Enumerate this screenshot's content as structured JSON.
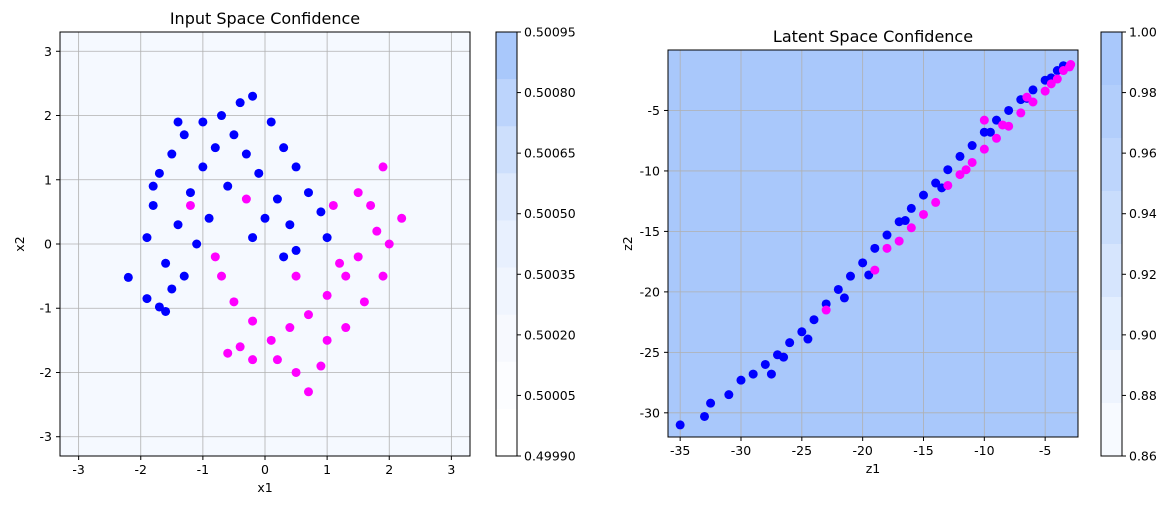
{
  "chart_data": [
    {
      "type": "scatter",
      "title": "Input Space Confidence",
      "xlabel": "x1",
      "ylabel": "x2",
      "xlim": [
        -3.3,
        3.3
      ],
      "ylim": [
        -3.3,
        3.3
      ],
      "xticks": [
        -3,
        -2,
        -1,
        0,
        1,
        2,
        3
      ],
      "yticks": [
        -3,
        -2,
        -1,
        0,
        1,
        2,
        3
      ],
      "grid": true,
      "background": "#f5f9ff",
      "colorbar": {
        "ticks": [
          "0.50095",
          "0.50080",
          "0.50065",
          "0.50050",
          "0.50035",
          "0.50020",
          "0.50005",
          "0.49990"
        ],
        "colors": [
          "#a9c8fb",
          "#bcd4fc",
          "#cddffc",
          "#dde9fd",
          "#e8f0fe",
          "#f0f5fe",
          "#f7f9fe",
          "#fcfdff",
          "#ffffff"
        ]
      },
      "series": [
        {
          "color": "#0000ff",
          "points": [
            [
              -2.2,
              -0.52
            ],
            [
              -1.9,
              -0.85
            ],
            [
              -1.7,
              -0.98
            ],
            [
              -1.6,
              -1.05
            ],
            [
              -1.9,
              0.1
            ],
            [
              -1.8,
              0.6
            ],
            [
              -1.7,
              1.1
            ],
            [
              -1.5,
              1.4
            ],
            [
              -1.3,
              1.7
            ],
            [
              -1.0,
              1.9
            ],
            [
              -0.7,
              2.0
            ],
            [
              -0.4,
              2.2
            ],
            [
              -0.2,
              2.3
            ],
            [
              0.1,
              1.9
            ],
            [
              0.3,
              1.5
            ],
            [
              0.5,
              1.2
            ],
            [
              0.7,
              0.8
            ],
            [
              0.9,
              0.5
            ],
            [
              1.0,
              0.1
            ],
            [
              -1.4,
              0.3
            ],
            [
              -1.2,
              0.8
            ],
            [
              -1.0,
              1.2
            ],
            [
              -0.8,
              1.5
            ],
            [
              -0.5,
              1.7
            ],
            [
              -0.3,
              1.4
            ],
            [
              -0.1,
              1.1
            ],
            [
              0.2,
              0.7
            ],
            [
              0.4,
              0.3
            ],
            [
              0.5,
              -0.1
            ],
            [
              -1.6,
              -0.3
            ],
            [
              -1.3,
              -0.5
            ],
            [
              -1.5,
              -0.7
            ],
            [
              -1.1,
              0.0
            ],
            [
              -0.9,
              0.4
            ],
            [
              -0.6,
              0.9
            ],
            [
              0.0,
              0.4
            ],
            [
              0.3,
              -0.2
            ],
            [
              -0.2,
              0.1
            ],
            [
              -1.8,
              0.9
            ],
            [
              -1.4,
              1.9
            ]
          ]
        },
        {
          "color": "#ff00ff",
          "points": [
            [
              1.9,
              1.2
            ],
            [
              1.7,
              0.6
            ],
            [
              1.8,
              0.2
            ],
            [
              1.5,
              -0.2
            ],
            [
              1.3,
              -0.5
            ],
            [
              1.0,
              -0.8
            ],
            [
              0.7,
              -1.1
            ],
            [
              0.4,
              -1.3
            ],
            [
              0.1,
              -1.5
            ],
            [
              -0.2,
              -1.2
            ],
            [
              -0.5,
              -0.9
            ],
            [
              -0.7,
              -0.5
            ],
            [
              -0.8,
              -0.2
            ],
            [
              0.2,
              -1.8
            ],
            [
              0.5,
              -2.0
            ],
            [
              0.7,
              -2.3
            ],
            [
              -0.2,
              -1.8
            ],
            [
              -0.4,
              -1.6
            ],
            [
              1.0,
              -1.5
            ],
            [
              1.3,
              -1.3
            ],
            [
              1.6,
              -0.9
            ],
            [
              1.9,
              -0.5
            ],
            [
              2.0,
              0.0
            ],
            [
              2.2,
              0.4
            ],
            [
              1.1,
              0.6
            ],
            [
              -1.2,
              0.6
            ],
            [
              -0.3,
              0.7
            ],
            [
              0.5,
              -0.5
            ],
            [
              -0.6,
              -1.7
            ],
            [
              0.9,
              -1.9
            ],
            [
              1.2,
              -0.3
            ],
            [
              1.5,
              0.8
            ]
          ]
        }
      ]
    },
    {
      "type": "scatter",
      "title": "Latent Space Confidence",
      "xlabel": "z1",
      "ylabel": "z2",
      "xlim": [
        -36,
        -2.3
      ],
      "ylim": [
        -32,
        0
      ],
      "xticks": [
        -35,
        -30,
        -25,
        -20,
        -15,
        -10,
        -5
      ],
      "yticks": [
        -30,
        -25,
        -20,
        -15,
        -10,
        -5
      ],
      "grid": true,
      "background": "#a9c8fb",
      "colorbar": {
        "ticks": [
          "1.00",
          "0.98",
          "0.96",
          "0.94",
          "0.92",
          "0.90",
          "0.88",
          "0.86"
        ],
        "colors": [
          "#a9c8fb",
          "#b2cefb",
          "#bdd5fc",
          "#c9ddfc",
          "#d6e5fd",
          "#e3eefe",
          "#eef4fe",
          "#f7faff"
        ]
      },
      "series": [
        {
          "color": "#0000ff",
          "points": [
            [
              -35,
              -31
            ],
            [
              -33,
              -30.3
            ],
            [
              -32.5,
              -29.2
            ],
            [
              -31,
              -28.5
            ],
            [
              -30,
              -27.3
            ],
            [
              -29,
              -26.8
            ],
            [
              -28,
              -26.0
            ],
            [
              -27,
              -25.2
            ],
            [
              -26,
              -24.2
            ],
            [
              -25,
              -23.3
            ],
            [
              -24,
              -22.3
            ],
            [
              -23,
              -21.0
            ],
            [
              -22,
              -19.8
            ],
            [
              -21,
              -18.7
            ],
            [
              -20,
              -17.6
            ],
            [
              -19,
              -16.4
            ],
            [
              -18,
              -15.3
            ],
            [
              -17,
              -14.2
            ],
            [
              -16,
              -13.1
            ],
            [
              -15,
              -12.0
            ],
            [
              -14,
              -11.0
            ],
            [
              -13,
              -9.9
            ],
            [
              -12,
              -8.8
            ],
            [
              -11,
              -7.9
            ],
            [
              -10,
              -6.8
            ],
            [
              -9,
              -5.8
            ],
            [
              -8,
              -5.0
            ],
            [
              -7,
              -4.1
            ],
            [
              -6,
              -3.3
            ],
            [
              -5,
              -2.5
            ],
            [
              -4,
              -1.7
            ],
            [
              -3.5,
              -1.3
            ],
            [
              -27.5,
              -26.8
            ],
            [
              -26.5,
              -25.4
            ],
            [
              -24.5,
              -23.9
            ],
            [
              -21.5,
              -20.5
            ],
            [
              -19.5,
              -18.6
            ],
            [
              -16.5,
              -14.1
            ],
            [
              -13.5,
              -11.4
            ],
            [
              -9.5,
              -6.8
            ],
            [
              -6.5,
              -4.0
            ],
            [
              -4.5,
              -2.3
            ]
          ]
        },
        {
          "color": "#ff00ff",
          "points": [
            [
              -23,
              -21.5
            ],
            [
              -19,
              -18.2
            ],
            [
              -17,
              -15.8
            ],
            [
              -15,
              -13.6
            ],
            [
              -13,
              -11.2
            ],
            [
              -11,
              -9.3
            ],
            [
              -10,
              -8.2
            ],
            [
              -9,
              -7.3
            ],
            [
              -8,
              -6.3
            ],
            [
              -7,
              -5.2
            ],
            [
              -6,
              -4.3
            ],
            [
              -5,
              -3.4
            ],
            [
              -4,
              -2.4
            ],
            [
              -3,
              -1.4
            ],
            [
              -2.9,
              -1.2
            ],
            [
              -10,
              -5.8
            ],
            [
              -12,
              -10.3
            ],
            [
              -14,
              -12.6
            ],
            [
              -16,
              -14.7
            ],
            [
              -18,
              -16.4
            ],
            [
              -6.5,
              -3.9
            ],
            [
              -4.5,
              -2.8
            ],
            [
              -3.5,
              -1.7
            ],
            [
              -8.5,
              -6.2
            ],
            [
              -11.5,
              -9.9
            ]
          ]
        }
      ]
    }
  ]
}
